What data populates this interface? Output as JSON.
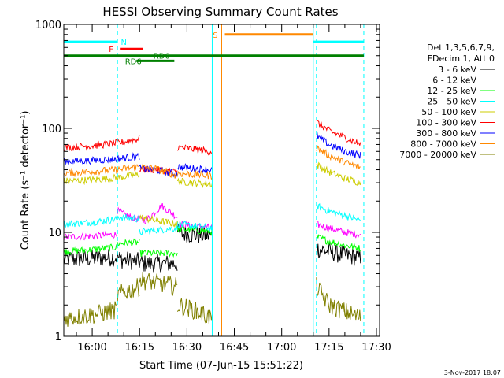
{
  "chart_data": {
    "type": "line",
    "title": "HESSI Observing Summary Count Rates",
    "xlabel": "Start Time (07-Jun-15 15:51:22)",
    "ylabel": "Count Rate (s⁻¹ detector⁻¹)",
    "y_scale": "log",
    "ylim": [
      1,
      1000
    ],
    "xlim": [
      "15:51",
      "17:31"
    ],
    "x_ticks": [
      "16:00",
      "16:15",
      "16:30",
      "16:45",
      "17:00",
      "17:15",
      "17:30"
    ],
    "y_ticks": [
      "1",
      "10",
      "100",
      "1000"
    ],
    "legend": {
      "placement": "right",
      "header": [
        "Det 1,3,5,6,7,9,",
        "FDecim 1, Att 0"
      ]
    },
    "series": [
      {
        "name": "3 - 6 keV",
        "color": "#000000",
        "segments": [
          {
            "x": [
              "15:51",
              "16:00",
              "16:08",
              "16:09",
              "16:15",
              "16:16",
              "16:27"
            ],
            "y": [
              5.5,
              5.6,
              5.8,
              5.5,
              5.2,
              5,
              5
            ]
          },
          {
            "x": [
              "16:27",
              "16:32",
              "16:38"
            ],
            "y": [
              9.8,
              9.5,
              9.2
            ]
          },
          {
            "x": [
              "17:11",
              "17:15",
              "17:20",
              "17:25"
            ],
            "y": [
              7,
              6.5,
              6,
              5.7
            ]
          }
        ]
      },
      {
        "name": "6 - 12 keV",
        "color": "#ff00ff",
        "segments": [
          {
            "x": [
              "15:51",
              "16:00",
              "16:08"
            ],
            "y": [
              9,
              9.2,
              9.5
            ]
          },
          {
            "x": [
              "16:08",
              "16:12",
              "16:17",
              "16:22",
              "16:27"
            ],
            "y": [
              16,
              14,
              13,
              18,
              14
            ]
          },
          {
            "x": [
              "16:27",
              "16:32",
              "16:38"
            ],
            "y": [
              12,
              11.5,
              11
            ]
          },
          {
            "x": [
              "17:11",
              "17:15",
              "17:20",
              "17:25"
            ],
            "y": [
              12,
              11,
              10,
              9.5
            ]
          }
        ]
      },
      {
        "name": "12 - 25 keV",
        "color": "#00ff00",
        "segments": [
          {
            "x": [
              "15:51",
              "16:00",
              "16:08"
            ],
            "y": [
              6.5,
              6.8,
              7.2
            ]
          },
          {
            "x": [
              "16:08",
              "16:15"
            ],
            "y": [
              7.8,
              8
            ]
          },
          {
            "x": [
              "16:15",
              "16:20",
              "16:27"
            ],
            "y": [
              6.3,
              6.3,
              6.3
            ]
          },
          {
            "x": [
              "16:27",
              "16:32",
              "16:38"
            ],
            "y": [
              10.8,
              10.5,
              10.2
            ]
          },
          {
            "x": [
              "17:11",
              "17:15",
              "17:20",
              "17:25"
            ],
            "y": [
              9,
              8.2,
              7.5,
              7
            ]
          }
        ]
      },
      {
        "name": "25 - 50 keV",
        "color": "#00ffff",
        "segments": [
          {
            "x": [
              "15:51",
              "16:00",
              "16:08"
            ],
            "y": [
              12,
              12.5,
              13.5
            ]
          },
          {
            "x": [
              "16:08",
              "16:15"
            ],
            "y": [
              14,
              13.5
            ]
          },
          {
            "x": [
              "16:15",
              "16:20",
              "16:27"
            ],
            "y": [
              10,
              10.5,
              11
            ]
          },
          {
            "x": [
              "16:27",
              "16:32",
              "16:38"
            ],
            "y": [
              12,
              11.5,
              11
            ]
          },
          {
            "x": [
              "17:11",
              "17:15",
              "17:20",
              "17:25"
            ],
            "y": [
              18,
              16,
              14.5,
              13
            ]
          }
        ]
      },
      {
        "name": "50 - 100 keV",
        "color": "#cccc00",
        "segments": [
          {
            "x": [
              "15:51",
              "16:00",
              "16:08",
              "16:15"
            ],
            "y": [
              31,
              32,
              33.5,
              36
            ]
          },
          {
            "x": [
              "16:15",
              "16:20",
              "16:27"
            ],
            "y": [
              14,
              13,
              12
            ]
          },
          {
            "x": [
              "16:27",
              "16:32",
              "16:38"
            ],
            "y": [
              31,
              30,
              29
            ]
          },
          {
            "x": [
              "17:11",
              "17:15",
              "17:20",
              "17:25"
            ],
            "y": [
              45,
              38,
              33,
              30
            ]
          }
        ]
      },
      {
        "name": "100 - 300 keV",
        "color": "#ff0000",
        "segments": [
          {
            "x": [
              "15:51",
              "16:00",
              "16:08",
              "16:15"
            ],
            "y": [
              65,
              68,
              72,
              80
            ]
          },
          {
            "x": [
              "16:15",
              "16:20",
              "16:27"
            ],
            "y": [
              41,
              40,
              38
            ]
          },
          {
            "x": [
              "16:27",
              "16:32",
              "16:38"
            ],
            "y": [
              66,
              63,
              60
            ]
          },
          {
            "x": [
              "17:11",
              "17:15",
              "17:20",
              "17:25"
            ],
            "y": [
              115,
              95,
              82,
              70
            ]
          }
        ]
      },
      {
        "name": "300 - 800 keV",
        "color": "#0000ff",
        "segments": [
          {
            "x": [
              "15:51",
              "16:00",
              "16:08",
              "16:15"
            ],
            "y": [
              48,
              49,
              51,
              54
            ]
          },
          {
            "x": [
              "16:15",
              "16:20",
              "16:27"
            ],
            "y": [
              41,
              40,
              36
            ]
          },
          {
            "x": [
              "16:27",
              "16:32",
              "16:38"
            ],
            "y": [
              43,
              41,
              40
            ]
          },
          {
            "x": [
              "17:11",
              "17:15",
              "17:20",
              "17:25"
            ],
            "y": [
              85,
              70,
              60,
              55
            ]
          }
        ]
      },
      {
        "name": "800 - 7000 keV",
        "color": "#ff8800",
        "segments": [
          {
            "x": [
              "15:51",
              "16:00",
              "16:08",
              "16:15"
            ],
            "y": [
              37,
              38.5,
              40,
              43
            ]
          },
          {
            "x": [
              "16:15",
              "16:20",
              "16:27"
            ],
            "y": [
              43,
              41,
              35
            ]
          },
          {
            "x": [
              "16:27",
              "16:32",
              "16:38"
            ],
            "y": [
              37,
              36,
              35
            ]
          },
          {
            "x": [
              "17:11",
              "17:15",
              "17:20",
              "17:25"
            ],
            "y": [
              65,
              55,
              47,
              42
            ]
          }
        ]
      },
      {
        "name": "7000 - 20000 keV",
        "color": "#808000",
        "segments": [
          {
            "x": [
              "15:51",
              "16:00",
              "16:08"
            ],
            "y": [
              1.5,
              1.6,
              1.8
            ]
          },
          {
            "x": [
              "16:08",
              "16:15"
            ],
            "y": [
              2.5,
              3
            ]
          },
          {
            "x": [
              "16:15",
              "16:27"
            ],
            "y": [
              3.5,
              3
            ]
          },
          {
            "x": [
              "16:27",
              "16:32",
              "16:38"
            ],
            "y": [
              2,
              1.8,
              1.5
            ]
          },
          {
            "x": [
              "17:11",
              "17:15",
              "17:25"
            ],
            "y": [
              3,
              2,
              1.5
            ]
          }
        ]
      }
    ],
    "vertical_markers": [
      {
        "x": "15:51",
        "color": "#00ffff",
        "style": "solid"
      },
      {
        "x": "16:08",
        "color": "#00ffff",
        "style": "dashed"
      },
      {
        "x": "16:38",
        "color": "#00ffff",
        "style": "solid"
      },
      {
        "x": "16:41",
        "color": "#ff8800",
        "style": "solid"
      },
      {
        "x": "17:10",
        "color": "#00ffff",
        "style": "solid"
      },
      {
        "x": "17:11",
        "color": "#00ffff",
        "style": "dashed"
      },
      {
        "x": "17:26",
        "color": "#00ffff",
        "style": "dashed"
      }
    ],
    "flag_bars": [
      {
        "label": "N",
        "color": "#00ffff",
        "start": "15:51",
        "end": "16:08",
        "y": 680,
        "label_at": "16:10"
      },
      {
        "label": "N",
        "color": "#00ffff",
        "start": "17:10",
        "end": "17:26",
        "y": 680
      },
      {
        "label": "F",
        "color": "#ff0000",
        "start": "16:09",
        "end": "16:16",
        "y": 580,
        "label_at": "16:06"
      },
      {
        "label": "RD0",
        "color": "#008000",
        "start": "15:51",
        "end": "17:26",
        "y": 500,
        "label_at": "16:22"
      },
      {
        "label": "RD6",
        "color": "#008000",
        "start": "16:14",
        "end": "16:26",
        "y": 445,
        "label_at": "16:13"
      },
      {
        "label": "S",
        "color": "#ff8800",
        "start": "16:42",
        "end": "17:10",
        "y": 800,
        "label_at": "16:39"
      }
    ],
    "grid": false,
    "timestamp": "3-Nov-2017 18:07"
  }
}
